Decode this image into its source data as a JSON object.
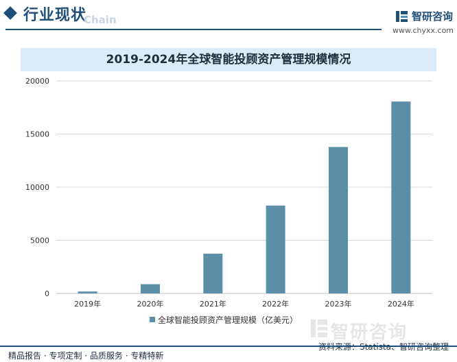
{
  "header": {
    "section_title": "行业现状",
    "section_sub": "Chain",
    "brand_name": "智研咨询",
    "brand_url": "www.chyxx.com"
  },
  "footer": {
    "left_text": "精品报告 · 专项定制 · 品质服务 · 专精特新",
    "source_text": "资料来源：Statista、智研咨询整理",
    "watermark": "智研咨询"
  },
  "colors": {
    "bar": "#5b8fa8",
    "accent": "#1f4e79",
    "grid": "#d9d9d9"
  },
  "chart_data": {
    "type": "bar",
    "title": "2019-2024年全球智能投顾资产管理规模情况",
    "categories": [
      "2019年",
      "2020年",
      "2021年",
      "2022年",
      "2023年",
      "2024年"
    ],
    "series": [
      {
        "name": "全球智能投顾资产管理规模（亿美元）",
        "values": [
          180,
          870,
          3740,
          8270,
          13780,
          18060
        ]
      }
    ],
    "yticks": [
      "0",
      "5000",
      "10000",
      "15000",
      "20000"
    ],
    "ylim": [
      0,
      20000
    ],
    "xlabel": "",
    "ylabel": "",
    "legend": "bottom-center",
    "grid": true
  }
}
